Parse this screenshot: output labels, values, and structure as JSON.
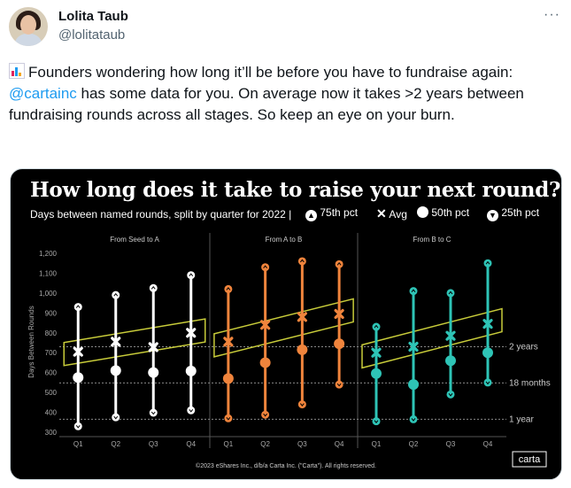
{
  "author": {
    "name": "Lolita Taub",
    "handle": "@lolitataub"
  },
  "menu_icon": "more-horizontal-icon",
  "tweet": {
    "emoji": "bar-chart-icon",
    "text_before": "Founders wondering how long it’ll be before you have to fundraise again: ",
    "mention": "@cartainc",
    "text_after": " has some data for you. On average now it takes >2 years between fundraising rounds across all stages. So keep an eye on your burn."
  },
  "card": {
    "title": "How long does it take to raise your next round?",
    "subtitle": "Days between named rounds, split by quarter for 2022  |",
    "legend": [
      {
        "symbol": "up-circle-icon",
        "label": "75th pct"
      },
      {
        "symbol": "x-icon",
        "label": "Avg"
      },
      {
        "symbol": "circle-icon",
        "label": "50th pct"
      },
      {
        "symbol": "down-circle-icon",
        "label": "25th pct"
      }
    ],
    "footer": "©2023 eShares Inc., d/b/a Carta Inc. (\"Carta\"). All rights reserved.",
    "logo": "carta"
  },
  "colors": {
    "seed_to_a": "#ffffff",
    "a_to_b": "#f0843c",
    "b_to_c": "#2ec4b6",
    "trend_box": "#c8cc3a",
    "background": "#000000"
  },
  "chart_data": {
    "type": "scatter",
    "ylabel": "Days Between Rounds",
    "yticks": [
      "1,200",
      "1,100",
      "1,000",
      "900",
      "800",
      "700",
      "600",
      "500",
      "400",
      "300"
    ],
    "ylim": [
      270,
      1225
    ],
    "reference_lines": [
      {
        "label": "2 years",
        "value": 730
      },
      {
        "label": "18 months",
        "value": 548
      },
      {
        "label": "1 year",
        "value": 365
      }
    ],
    "categories": [
      "Q1",
      "Q2",
      "Q3",
      "Q4"
    ],
    "panels": [
      {
        "name": "From Seed to A",
        "color": "#ffffff",
        "p75": [
          930,
          990,
          1025,
          1090
        ],
        "avg": [
          705,
          755,
          728,
          800
        ],
        "p50": [
          575,
          610,
          600,
          608
        ],
        "p25": [
          330,
          375,
          398,
          410
        ]
      },
      {
        "name": "From A to B",
        "color": "#f0843c",
        "p75": [
          1020,
          1130,
          1160,
          1145
        ],
        "avg": [
          755,
          840,
          880,
          895
        ],
        "p50": [
          570,
          650,
          715,
          745
        ],
        "p25": [
          370,
          388,
          440,
          540
        ]
      },
      {
        "name": "From B to C",
        "color": "#2ec4b6",
        "p75": [
          830,
          1010,
          1000,
          1150
        ],
        "avg": [
          700,
          730,
          785,
          845
        ],
        "p50": [
          595,
          540,
          660,
          700
        ],
        "p25": [
          355,
          365,
          490,
          550
        ]
      }
    ]
  }
}
